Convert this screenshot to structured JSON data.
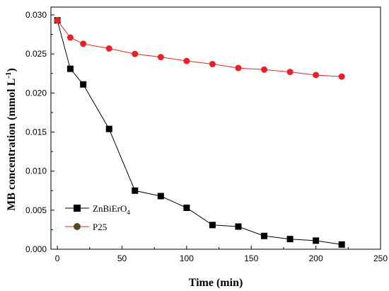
{
  "chart_data": {
    "type": "line",
    "title": "",
    "xlabel": "Time (min)",
    "ylabel": "MB concentration (mmol L",
    "ylabel_sup": "-1",
    "ylabel_close": ")",
    "xlim": [
      -5,
      250
    ],
    "ylim": [
      0,
      0.031
    ],
    "xticks": [
      0,
      50,
      100,
      150,
      200,
      250
    ],
    "yticks": [
      0.0,
      0.005,
      0.01,
      0.015,
      0.02,
      0.025,
      0.03
    ],
    "ytick_labels": [
      "0.000",
      "0.005",
      "0.010",
      "0.015",
      "0.020",
      "0.025",
      "0.030"
    ],
    "grid": false,
    "legend": "bottom-left",
    "series": [
      {
        "name": "ZnBiErO",
        "name_sub": "4",
        "marker": "square",
        "color": "#000000",
        "x": [
          0,
          10,
          20,
          40,
          60,
          80,
          100,
          120,
          140,
          160,
          180,
          200,
          220
        ],
        "y": [
          0.0293,
          0.0231,
          0.0211,
          0.0154,
          0.0075,
          0.0068,
          0.0053,
          0.0031,
          0.0029,
          0.0017,
          0.0013,
          0.0011,
          0.0006
        ]
      },
      {
        "name": "P25",
        "name_sub": "",
        "marker": "circle",
        "color": "#e8202a",
        "x": [
          0,
          10,
          20,
          40,
          60,
          80,
          100,
          120,
          140,
          160,
          180,
          200,
          220
        ],
        "y": [
          0.0293,
          0.0271,
          0.0263,
          0.0257,
          0.025,
          0.0246,
          0.0241,
          0.0237,
          0.0232,
          0.023,
          0.0227,
          0.0223,
          0.0221
        ]
      }
    ]
  }
}
